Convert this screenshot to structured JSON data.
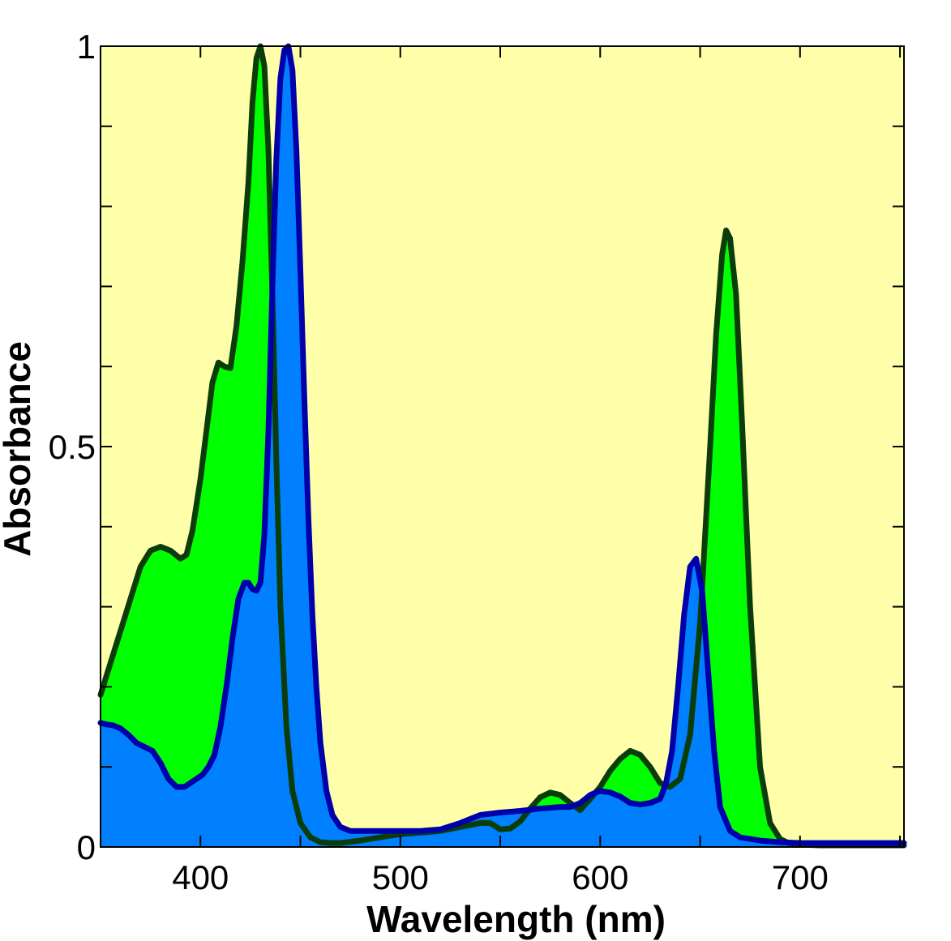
{
  "chart_data": {
    "type": "area",
    "title": "",
    "xlabel": "Wavelength (nm)",
    "ylabel": "Absorbance",
    "xlim": [
      350,
      752
    ],
    "ylim": [
      0,
      1
    ],
    "x_ticks": [
      400,
      500,
      600,
      700
    ],
    "x_tick_labels": [
      "400",
      "500",
      "600",
      "700"
    ],
    "y_ticks": [
      0,
      0.5,
      1
    ],
    "y_tick_labels": [
      "0",
      "0.5",
      "1"
    ],
    "y_minor_ticks": [
      0.1,
      0.2,
      0.3,
      0.4,
      0.6,
      0.7,
      0.8,
      0.9
    ],
    "x_minor_ticks": [
      450,
      550,
      650,
      750
    ],
    "grid": false,
    "plot_background": "#ffffaa",
    "series": [
      {
        "name": "green spectrum",
        "fill": "#00ff00",
        "stroke": "#0a3d0a",
        "x": [
          350,
          355,
          360,
          365,
          370,
          375,
          380,
          385,
          390,
          393,
          396,
          400,
          403,
          406,
          409,
          412,
          415,
          418,
          421,
          424,
          426,
          428,
          430,
          432,
          434,
          436,
          438,
          440,
          443,
          446,
          450,
          455,
          460,
          465,
          470,
          480,
          490,
          500,
          510,
          520,
          530,
          540,
          545,
          550,
          555,
          560,
          565,
          570,
          575,
          580,
          585,
          590,
          595,
          600,
          605,
          610,
          615,
          620,
          625,
          630,
          635,
          640,
          645,
          650,
          655,
          658,
          661,
          663,
          665,
          668,
          671,
          675,
          680,
          685,
          690,
          695,
          700,
          710,
          720,
          730,
          740,
          752
        ],
        "values": [
          0.19,
          0.23,
          0.27,
          0.31,
          0.35,
          0.37,
          0.375,
          0.37,
          0.36,
          0.365,
          0.395,
          0.46,
          0.52,
          0.58,
          0.605,
          0.6,
          0.598,
          0.65,
          0.73,
          0.83,
          0.93,
          0.985,
          1.0,
          0.975,
          0.87,
          0.69,
          0.48,
          0.3,
          0.15,
          0.07,
          0.03,
          0.012,
          0.006,
          0.005,
          0.005,
          0.008,
          0.012,
          0.016,
          0.018,
          0.02,
          0.025,
          0.03,
          0.03,
          0.022,
          0.023,
          0.032,
          0.048,
          0.062,
          0.068,
          0.065,
          0.055,
          0.046,
          0.06,
          0.075,
          0.095,
          0.11,
          0.12,
          0.115,
          0.1,
          0.08,
          0.075,
          0.085,
          0.14,
          0.28,
          0.5,
          0.64,
          0.74,
          0.77,
          0.76,
          0.69,
          0.53,
          0.3,
          0.1,
          0.03,
          0.01,
          0.004,
          0.003,
          0.002,
          0.002,
          0.002,
          0.002,
          0.002
        ]
      },
      {
        "name": "blue spectrum",
        "fill": "#0080ff",
        "stroke": "#0000aa",
        "x": [
          350,
          353,
          356,
          360,
          364,
          368,
          372,
          376,
          380,
          384,
          388,
          392,
          395,
          398,
          401,
          404,
          407,
          410,
          413,
          416,
          419,
          422,
          424,
          426,
          428,
          430,
          432,
          434,
          436,
          438,
          440,
          442,
          444,
          446,
          448,
          450,
          452,
          454,
          456,
          458,
          460,
          463,
          466,
          470,
          475,
          480,
          485,
          490,
          500,
          510,
          520,
          530,
          535,
          540,
          550,
          560,
          570,
          580,
          585,
          590,
          595,
          600,
          605,
          610,
          615,
          620,
          625,
          630,
          633,
          636,
          639,
          642,
          645,
          648,
          651,
          654,
          657,
          660,
          665,
          670,
          680,
          690,
          700,
          720,
          752
        ],
        "values": [
          0.155,
          0.153,
          0.152,
          0.148,
          0.14,
          0.13,
          0.125,
          0.12,
          0.105,
          0.085,
          0.075,
          0.075,
          0.08,
          0.085,
          0.09,
          0.1,
          0.115,
          0.15,
          0.2,
          0.26,
          0.31,
          0.33,
          0.33,
          0.322,
          0.32,
          0.33,
          0.39,
          0.52,
          0.7,
          0.86,
          0.96,
          0.995,
          1.0,
          0.97,
          0.87,
          0.72,
          0.56,
          0.41,
          0.29,
          0.2,
          0.13,
          0.07,
          0.04,
          0.025,
          0.02,
          0.02,
          0.02,
          0.02,
          0.02,
          0.02,
          0.022,
          0.03,
          0.035,
          0.04,
          0.043,
          0.045,
          0.048,
          0.05,
          0.05,
          0.055,
          0.065,
          0.07,
          0.068,
          0.063,
          0.055,
          0.053,
          0.055,
          0.06,
          0.08,
          0.12,
          0.2,
          0.29,
          0.35,
          0.36,
          0.32,
          0.22,
          0.12,
          0.05,
          0.02,
          0.012,
          0.008,
          0.006,
          0.005,
          0.005,
          0.005
        ]
      }
    ]
  }
}
